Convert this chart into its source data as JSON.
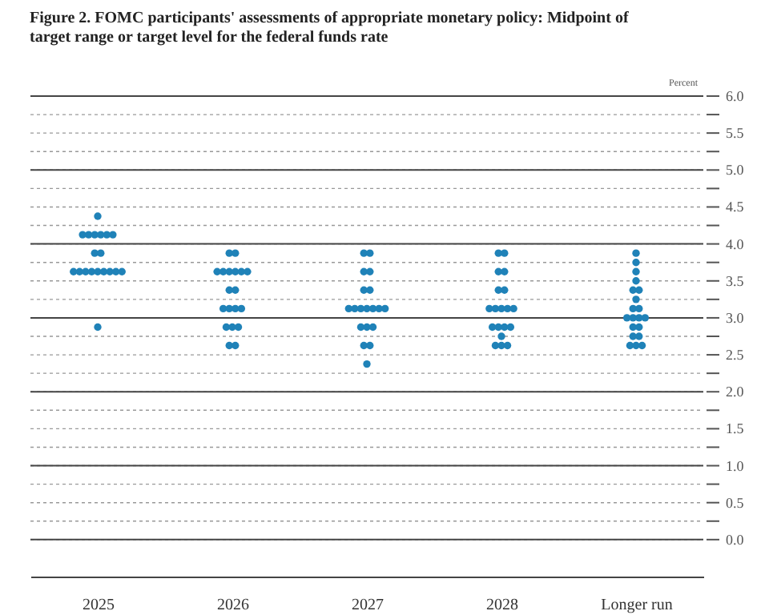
{
  "chart_data": {
    "type": "scatter",
    "title": "Figure 2. FOMC participants' assessments of appropriate monetary policy: Midpoint of target range or target level for the federal funds rate",
    "ylabel": "Percent",
    "categories": [
      "2025",
      "2026",
      "2027",
      "2028",
      "Longer run"
    ],
    "series": [
      {
        "color": "#1f82b8",
        "values": [
          4.375,
          3.875,
          3.875,
          3.875,
          3.875
        ]
      },
      {
        "color": "#1f82b8",
        "values": [
          4.125,
          3.875,
          3.875,
          3.875,
          3.75
        ]
      },
      {
        "color": "#1f82b8",
        "values": [
          4.125,
          3.625,
          3.625,
          3.625,
          3.625
        ]
      },
      {
        "color": "#1f82b8",
        "values": [
          4.125,
          3.625,
          3.625,
          3.625,
          3.5
        ]
      },
      {
        "color": "#1f82b8",
        "values": [
          4.125,
          3.625,
          3.375,
          3.375,
          3.375
        ]
      },
      {
        "color": "#1f82b8",
        "values": [
          4.125,
          3.625,
          3.375,
          3.375,
          3.375
        ]
      },
      {
        "color": "#1f82b8",
        "values": [
          4.125,
          3.625,
          3.125,
          3.125,
          3.25
        ]
      },
      {
        "color": "#1f82b8",
        "values": [
          3.875,
          3.625,
          3.125,
          3.125,
          3.125
        ]
      },
      {
        "color": "#1f82b8",
        "values": [
          3.875,
          3.375,
          3.125,
          3.125,
          3.125
        ]
      },
      {
        "color": "#1f82b8",
        "values": [
          3.625,
          3.375,
          3.125,
          3.125,
          3.0
        ]
      },
      {
        "color": "#1f82b8",
        "values": [
          3.625,
          3.125,
          3.125,
          3.125,
          3.0
        ]
      },
      {
        "color": "#1f82b8",
        "values": [
          3.625,
          3.125,
          3.125,
          2.875,
          3.0
        ]
      },
      {
        "color": "#1f82b8",
        "values": [
          3.625,
          3.125,
          3.125,
          2.875,
          3.0
        ]
      },
      {
        "color": "#1f82b8",
        "values": [
          3.625,
          3.125,
          2.875,
          2.875,
          2.875
        ]
      },
      {
        "color": "#1f82b8",
        "values": [
          3.625,
          2.875,
          2.875,
          2.875,
          2.875
        ]
      },
      {
        "color": "#1f82b8",
        "values": [
          3.625,
          2.875,
          2.875,
          2.75,
          2.75
        ]
      },
      {
        "color": "#1f82b8",
        "values": [
          3.625,
          2.875,
          2.625,
          2.625,
          2.75
        ]
      },
      {
        "color": "#1f82b8",
        "values": [
          3.625,
          2.625,
          2.625,
          2.625,
          2.625
        ]
      },
      {
        "color": "#1f82b8",
        "values": [
          2.875,
          2.625,
          2.375,
          2.625,
          2.625
        ]
      },
      {
        "color": "#1f82b8",
        "values": [
          null,
          null,
          null,
          null,
          2.625
        ]
      }
    ],
    "ylim": [
      -0.5,
      6.0
    ],
    "yticks": [
      {
        "value": 0,
        "label": "0.0"
      },
      {
        "value": 0.25,
        "label": null
      },
      0.5,
      {
        "value": 0.75,
        "label": null
      },
      {
        "value": 1,
        "label": "1.0"
      },
      {
        "value": 1.25,
        "label": null
      },
      1.5,
      {
        "value": 1.75,
        "label": null
      },
      {
        "value": 2,
        "label": "2.0"
      },
      {
        "value": 2.25,
        "label": null
      },
      2.5,
      {
        "value": 2.75,
        "label": null
      },
      {
        "value": 3,
        "label": "3.0"
      },
      {
        "value": 3.25,
        "label": null
      },
      3.5,
      {
        "value": 3.75,
        "label": null
      },
      {
        "value": 4,
        "label": "4.0"
      },
      {
        "value": 4.25,
        "label": null
      },
      4.5,
      {
        "value": 4.75,
        "label": null
      },
      {
        "value": 5,
        "label": "5.0"
      },
      {
        "value": 5.25,
        "label": null
      },
      5.5,
      {
        "value": 5.75,
        "label": null
      },
      {
        "value": 6,
        "label": "6.0"
      }
    ],
    "grid": "y",
    "marker": "circle"
  }
}
